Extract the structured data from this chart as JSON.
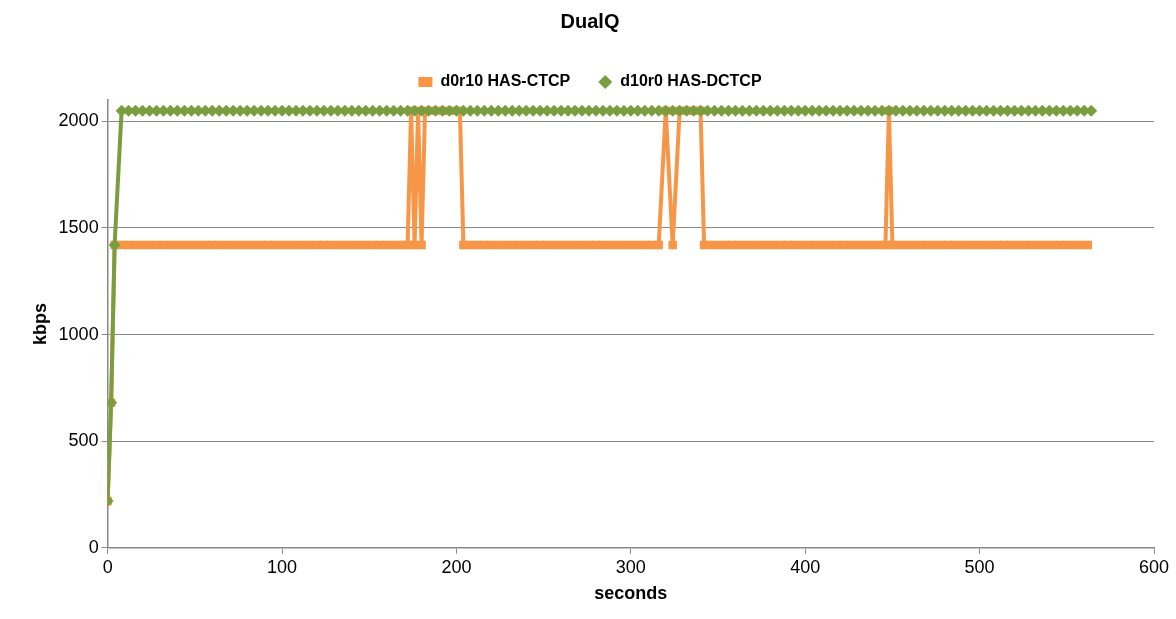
{
  "chart_data": {
    "type": "line",
    "title": "DualQ",
    "xlabel": "seconds",
    "ylabel": "kbps",
    "xlim": [
      0,
      600
    ],
    "xticks": [
      0,
      100,
      200,
      300,
      400,
      500,
      600
    ],
    "ylim": [
      0,
      2100
    ],
    "yticks": [
      0,
      500,
      1000,
      1500,
      2000
    ],
    "grid": "y",
    "legend": "top",
    "line_style": "solid",
    "series": [
      {
        "name": "d0r10 HAS-CTCP",
        "color": "#f79646",
        "marker": "square",
        "x": [
          0,
          2,
          4,
          8,
          12,
          16,
          20,
          24,
          28,
          32,
          36,
          40,
          44,
          48,
          52,
          56,
          60,
          64,
          68,
          72,
          76,
          80,
          84,
          88,
          92,
          96,
          100,
          104,
          108,
          112,
          116,
          120,
          124,
          128,
          132,
          136,
          140,
          144,
          148,
          152,
          156,
          160,
          164,
          168,
          172,
          174,
          176,
          178,
          180,
          182,
          186,
          190,
          194,
          198,
          202,
          204,
          208,
          212,
          216,
          220,
          224,
          228,
          232,
          236,
          240,
          244,
          248,
          252,
          256,
          260,
          264,
          268,
          272,
          276,
          280,
          284,
          288,
          292,
          296,
          300,
          304,
          308,
          312,
          316,
          320,
          324,
          328,
          332,
          336,
          340,
          342,
          346,
          350,
          354,
          358,
          362,
          366,
          370,
          374,
          378,
          382,
          386,
          390,
          394,
          398,
          402,
          406,
          410,
          414,
          418,
          422,
          426,
          430,
          434,
          438,
          442,
          446,
          448,
          450,
          454,
          458,
          462,
          466,
          470,
          474,
          478,
          482,
          486,
          490,
          494,
          498,
          502,
          506,
          510,
          514,
          518,
          522,
          526,
          530,
          534,
          538,
          542,
          546,
          550,
          554,
          558,
          562
        ],
        "values": [
          220,
          680,
          1420,
          1420,
          1420,
          1420,
          1420,
          1420,
          1420,
          1420,
          1420,
          1420,
          1420,
          1420,
          1420,
          1420,
          1420,
          1420,
          1420,
          1420,
          1420,
          1420,
          1420,
          1420,
          1420,
          1420,
          1420,
          1420,
          1420,
          1420,
          1420,
          1420,
          1420,
          1420,
          1420,
          1420,
          1420,
          1420,
          1420,
          1420,
          1420,
          1420,
          1420,
          1420,
          1420,
          2050,
          1420,
          2050,
          1420,
          2050,
          2050,
          2050,
          2050,
          2050,
          2050,
          1420,
          1420,
          1420,
          1420,
          1420,
          1420,
          1420,
          1420,
          1420,
          1420,
          1420,
          1420,
          1420,
          1420,
          1420,
          1420,
          1420,
          1420,
          1420,
          1420,
          1420,
          1420,
          1420,
          1420,
          1420,
          1420,
          1420,
          1420,
          1420,
          2050,
          1420,
          2050,
          2050,
          2050,
          2050,
          1420,
          1420,
          1420,
          1420,
          1420,
          1420,
          1420,
          1420,
          1420,
          1420,
          1420,
          1420,
          1420,
          1420,
          1420,
          1420,
          1420,
          1420,
          1420,
          1420,
          1420,
          1420,
          1420,
          1420,
          1420,
          1420,
          1420,
          2050,
          1420,
          1420,
          1420,
          1420,
          1420,
          1420,
          1420,
          1420,
          1420,
          1420,
          1420,
          1420,
          1420,
          1420,
          1420,
          1420,
          1420,
          1420,
          1420,
          1420,
          1420,
          1420,
          1420,
          1420,
          1420,
          1420,
          1420,
          1420,
          1420
        ]
      },
      {
        "name": "d10r0 HAS-DCTCP",
        "color": "#7a9e3f",
        "marker": "diamond",
        "x": [
          0,
          2,
          4,
          8,
          12,
          16,
          20,
          24,
          28,
          32,
          36,
          40,
          44,
          48,
          52,
          56,
          60,
          64,
          68,
          72,
          76,
          80,
          84,
          88,
          92,
          96,
          100,
          104,
          108,
          112,
          116,
          120,
          124,
          128,
          132,
          136,
          140,
          144,
          148,
          152,
          156,
          160,
          164,
          168,
          172,
          176,
          180,
          184,
          188,
          192,
          196,
          200,
          204,
          208,
          212,
          216,
          220,
          224,
          228,
          232,
          236,
          240,
          244,
          248,
          252,
          256,
          260,
          264,
          268,
          272,
          276,
          280,
          284,
          288,
          292,
          296,
          300,
          304,
          308,
          312,
          316,
          320,
          324,
          328,
          332,
          336,
          340,
          344,
          348,
          352,
          356,
          360,
          364,
          368,
          372,
          376,
          380,
          384,
          388,
          392,
          396,
          400,
          404,
          408,
          412,
          416,
          420,
          424,
          428,
          432,
          436,
          440,
          444,
          448,
          452,
          456,
          460,
          464,
          468,
          472,
          476,
          480,
          484,
          488,
          492,
          496,
          500,
          504,
          508,
          512,
          516,
          520,
          524,
          528,
          532,
          536,
          540,
          544,
          548,
          552,
          556,
          560,
          564
        ],
        "values": [
          220,
          680,
          1420,
          2050,
          2050,
          2050,
          2050,
          2050,
          2050,
          2050,
          2050,
          2050,
          2050,
          2050,
          2050,
          2050,
          2050,
          2050,
          2050,
          2050,
          2050,
          2050,
          2050,
          2050,
          2050,
          2050,
          2050,
          2050,
          2050,
          2050,
          2050,
          2050,
          2050,
          2050,
          2050,
          2050,
          2050,
          2050,
          2050,
          2050,
          2050,
          2050,
          2050,
          2050,
          2050,
          2050,
          2050,
          2050,
          2050,
          2050,
          2050,
          2050,
          2050,
          2050,
          2050,
          2050,
          2050,
          2050,
          2050,
          2050,
          2050,
          2050,
          2050,
          2050,
          2050,
          2050,
          2050,
          2050,
          2050,
          2050,
          2050,
          2050,
          2050,
          2050,
          2050,
          2050,
          2050,
          2050,
          2050,
          2050,
          2050,
          2050,
          2050,
          2050,
          2050,
          2050,
          2050,
          2050,
          2050,
          2050,
          2050,
          2050,
          2050,
          2050,
          2050,
          2050,
          2050,
          2050,
          2050,
          2050,
          2050,
          2050,
          2050,
          2050,
          2050,
          2050,
          2050,
          2050,
          2050,
          2050,
          2050,
          2050,
          2050,
          2050,
          2050,
          2050,
          2050,
          2050,
          2050,
          2050,
          2050,
          2050,
          2050,
          2050,
          2050,
          2050,
          2050,
          2050,
          2050,
          2050,
          2050,
          2050,
          2050,
          2050,
          2050,
          2050,
          2050,
          2050,
          2050,
          2050,
          2050,
          2050,
          2050
        ]
      }
    ]
  }
}
